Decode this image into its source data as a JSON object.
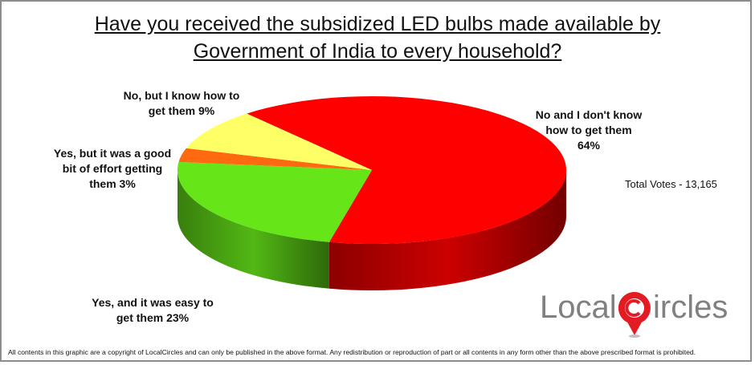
{
  "chart_data": {
    "type": "pie",
    "style": "3d",
    "title_line1": "Have you received the subsidized LED bulbs made available by",
    "title_line2": "Government of India to every household?",
    "slices": [
      {
        "label_lines": [
          "No and I don't know",
          "how to get them",
          "64%"
        ],
        "value": 64,
        "color": "#ff0000"
      },
      {
        "label_lines": [
          "Yes, and it was easy to",
          "get them  23%"
        ],
        "value": 23,
        "color": "#66e619"
      },
      {
        "label_lines": [
          "Yes, but it was a good",
          "bit of effort getting",
          "them  3%"
        ],
        "value": 3,
        "color": "#ff6a10"
      },
      {
        "label_lines": [
          "No, but I know how to",
          "get them  9%"
        ],
        "value": 9,
        "color": "#ffff66"
      }
    ]
  },
  "total_votes": "Total Votes - 13,165",
  "logo": {
    "text_left": "Local",
    "text_right": "ircles",
    "color": "#e31b23"
  },
  "footer": "All contents in this graphic are a copyright of LocalCircles and can only be published in the above format. Any redistribution or reproduction of part or all contents in any form other than the above prescribed format is prohibited."
}
